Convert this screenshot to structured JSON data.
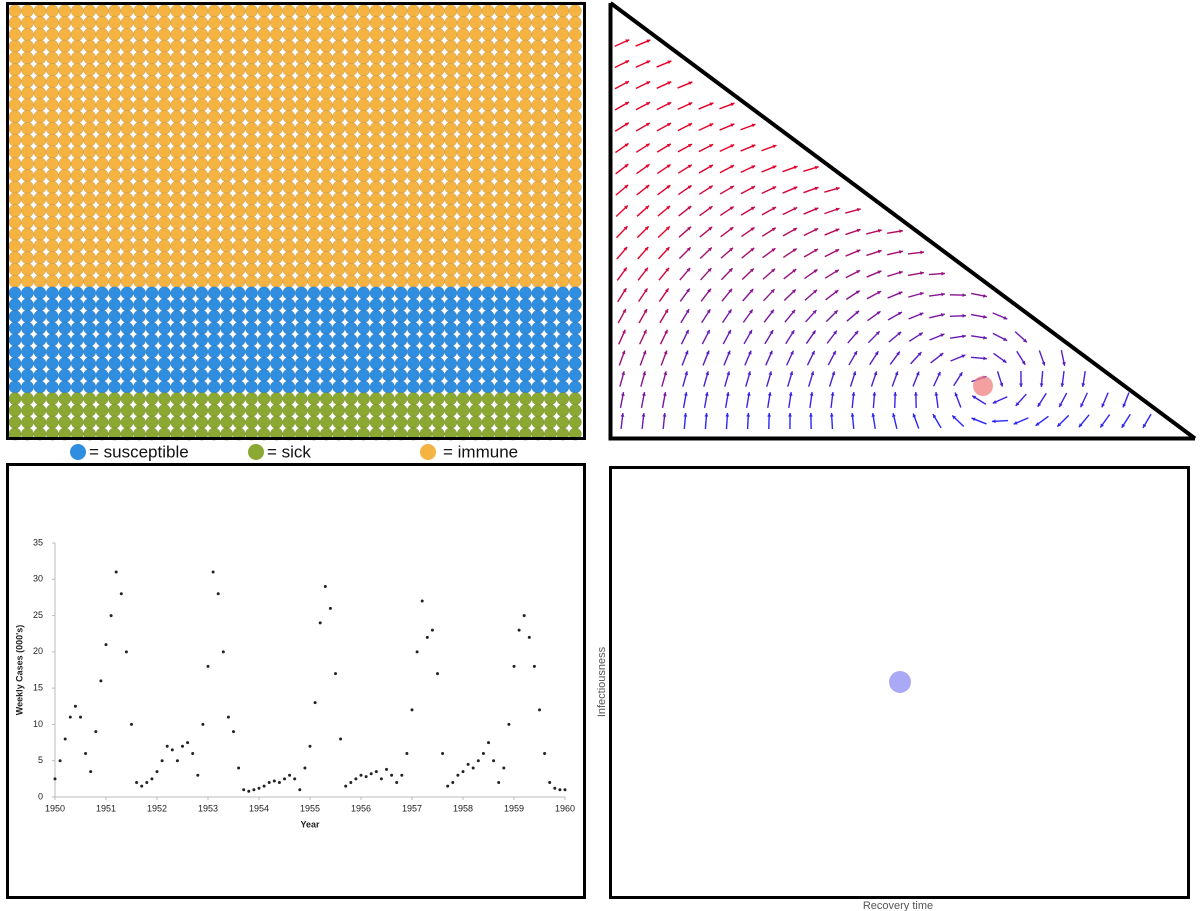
{
  "legend": {
    "items": [
      {
        "label": "= susceptible"
      },
      {
        "label": "= sick"
      },
      {
        "label": "= immune"
      }
    ]
  },
  "phase_plot": {
    "x_label": "Recovery time",
    "y_label": "Infectiousness"
  },
  "chart_data": {
    "type": "scatter",
    "x_label": "Year",
    "y_label": "Weekly Cases (000's)",
    "color": "#222222",
    "xlim": [
      1950,
      1960
    ],
    "xticks": [
      1950,
      1951,
      1952,
      1953,
      1954,
      1955,
      1956,
      1957,
      1958,
      1959,
      1960
    ],
    "ylim": [
      0,
      35
    ],
    "yticks": [
      0,
      5,
      10,
      15,
      20,
      25,
      30,
      35
    ],
    "x": [
      1950,
      1950.1,
      1950.2,
      1950.3,
      1950.4,
      1950.5,
      1950.6,
      1950.7,
      1950.8,
      1950.9,
      1951,
      1951.1,
      1951.2,
      1951.3,
      1951.4,
      1951.5,
      1951.6,
      1951.7,
      1951.8,
      1951.9,
      1952,
      1952.1,
      1952.2,
      1952.3,
      1952.4,
      1952.5,
      1952.6,
      1952.7,
      1952.8,
      1952.9,
      1953,
      1953.1,
      1953.2,
      1953.3,
      1953.4,
      1953.5,
      1953.6,
      1953.7,
      1953.8,
      1953.9,
      1954,
      1954.1,
      1954.2,
      1954.3,
      1954.4,
      1954.5,
      1954.6,
      1954.7,
      1954.8,
      1954.9,
      1955,
      1955.1,
      1955.2,
      1955.3,
      1955.4,
      1955.5,
      1955.6,
      1955.7,
      1955.8,
      1955.9,
      1956,
      1956.1,
      1956.2,
      1956.3,
      1956.4,
      1956.5,
      1956.6,
      1956.7,
      1956.8,
      1956.9,
      1957,
      1957.1,
      1957.2,
      1957.3,
      1957.4,
      1957.5,
      1957.6,
      1957.7,
      1957.8,
      1957.9,
      1958,
      1958.1,
      1958.2,
      1958.3,
      1958.4,
      1958.5,
      1958.6,
      1958.7,
      1958.8,
      1958.9,
      1959,
      1959.1,
      1959.2,
      1959.3,
      1959.4,
      1959.5,
      1959.6,
      1959.7,
      1959.8,
      1959.9,
      1960
    ],
    "values": [
      2.5,
      5,
      8,
      11,
      12.5,
      11,
      6,
      3.5,
      9,
      16,
      21,
      25,
      31,
      28,
      20,
      10,
      2,
      1.5,
      2,
      2.5,
      3.5,
      5,
      7,
      6.5,
      5,
      7,
      7.5,
      6,
      3,
      10,
      18,
      31,
      28,
      20,
      11,
      9,
      4,
      1,
      0.8,
      1,
      1.2,
      1.5,
      2,
      2.2,
      2,
      2.5,
      3,
      2.5,
      1,
      4,
      7,
      13,
      24,
      29,
      26,
      17,
      8,
      1.5,
      2,
      2.5,
      3,
      2.8,
      3.2,
      3.5,
      2.5,
      3.8,
      3,
      2,
      3,
      6,
      12,
      20,
      27,
      22,
      23,
      17,
      6,
      1.5,
      2,
      3,
      3.5,
      4.5,
      4,
      5,
      6,
      7.5,
      5,
      2,
      4,
      10,
      18,
      23,
      25,
      22,
      18,
      12,
      6,
      2,
      1.2,
      1,
      1
    ]
  }
}
